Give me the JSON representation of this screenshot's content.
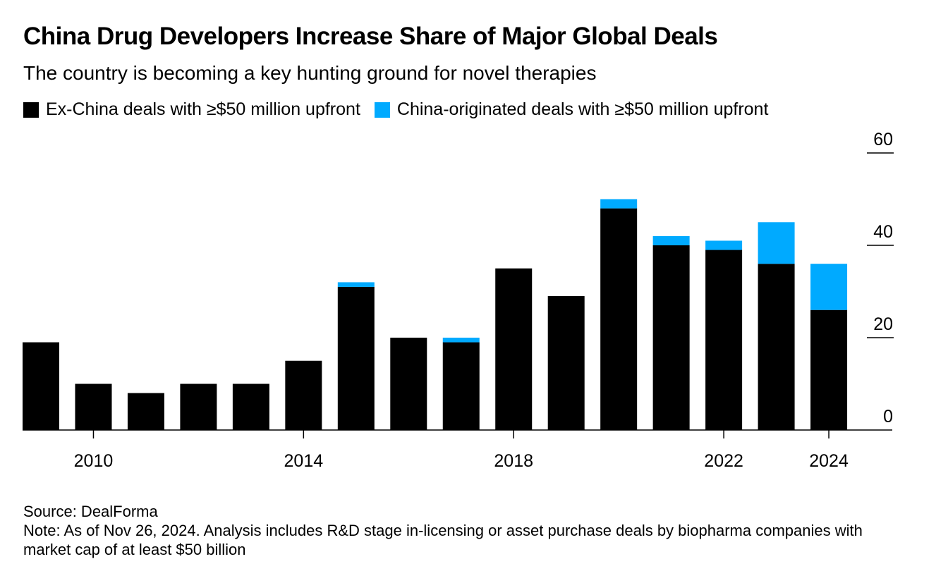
{
  "title": "China Drug Developers Increase Share of Major Global Deals",
  "subtitle": "The country is becoming a key hunting ground for novel therapies",
  "colors": {
    "ex_china": "#000000",
    "china": "#00aaff"
  },
  "source": "Source: DealForma",
  "note": "Note: As of Nov 26, 2024. Analysis includes R&D stage in-licensing or asset purchase deals by biopharma companies with market cap of at least $50 billion",
  "chart_data": {
    "type": "bar",
    "stacked": true,
    "title": "China Drug Developers Increase Share of Major Global Deals",
    "categories": [
      2009,
      2010,
      2011,
      2012,
      2013,
      2014,
      2015,
      2016,
      2017,
      2018,
      2019,
      2020,
      2021,
      2022,
      2023,
      2024
    ],
    "series": [
      {
        "name": "Ex-China deals with ≥$50 million upfront",
        "values": [
          19,
          10,
          8,
          10,
          10,
          15,
          31,
          20,
          19,
          35,
          29,
          48,
          40,
          39,
          36,
          26
        ]
      },
      {
        "name": "China-originated deals with ≥$50 million upfront",
        "values": [
          0,
          0,
          0,
          0,
          0,
          0,
          1,
          0,
          1,
          0,
          0,
          2,
          2,
          2,
          9,
          10
        ]
      }
    ],
    "x_tick_labels": [
      "2010",
      "2014",
      "2018",
      "2022",
      "2024"
    ],
    "y_ticks": [
      "0",
      "20",
      "40",
      "60"
    ],
    "ylim": [
      0,
      60
    ],
    "y_axis_position": "right",
    "legend_position": "top-left"
  }
}
